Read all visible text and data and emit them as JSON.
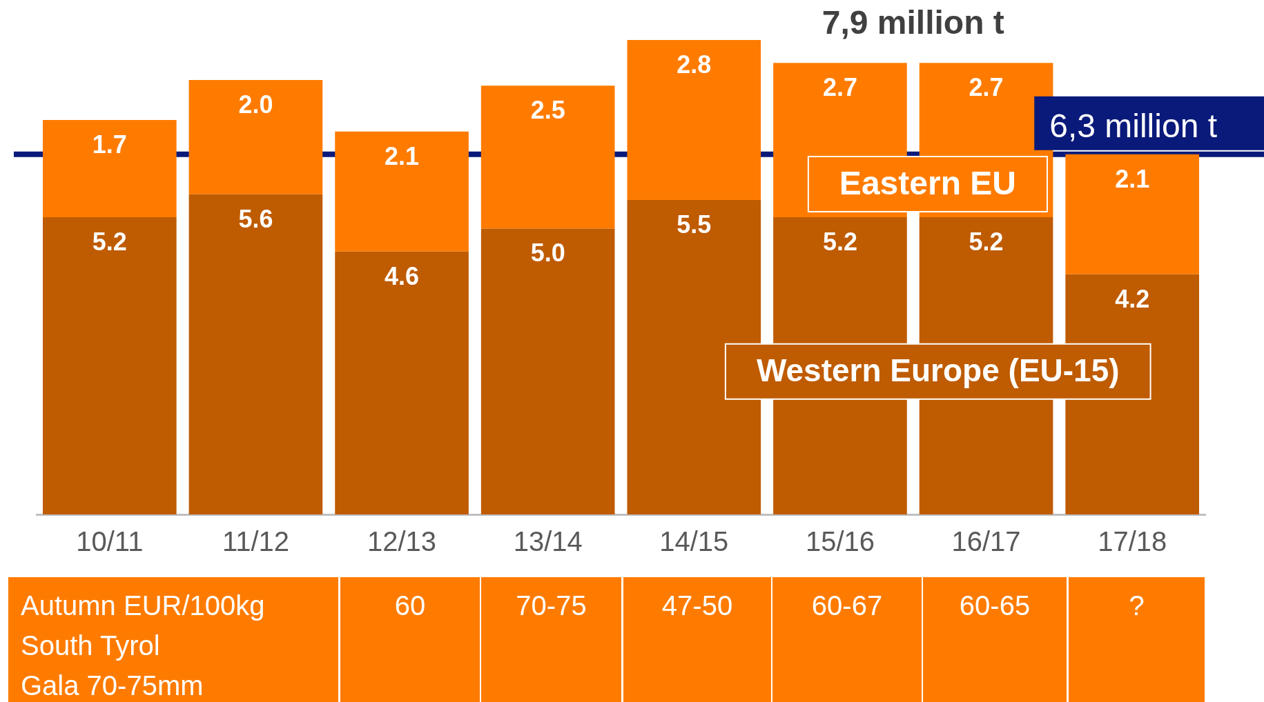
{
  "chart_data": {
    "type": "bar",
    "stacked": true,
    "categories": [
      "10/11",
      "11/12",
      "12/13",
      "13/14",
      "14/15",
      "15/16",
      "16/17",
      "17/18"
    ],
    "series": [
      {
        "name": "Western Europe (EU-15)",
        "color": "#bf5b00",
        "values": [
          5.2,
          5.6,
          4.6,
          5.0,
          5.5,
          5.2,
          5.2,
          4.2
        ],
        "value_labels": [
          "5.2",
          "5.6",
          "4.6",
          "5.0",
          "5.5",
          "5.2",
          "5.2",
          "4.2"
        ]
      },
      {
        "name": "Eastern EU",
        "color": "#ff7b00",
        "values": [
          1.7,
          2.0,
          2.1,
          2.5,
          2.8,
          2.7,
          2.7,
          2.1
        ],
        "value_labels": [
          "1.7",
          "2.0",
          "2.1",
          "2.5",
          "2.8",
          "2.7",
          "2.7",
          "2.1"
        ]
      }
    ],
    "tick_labels": "x",
    "legend": false,
    "grid": false,
    "ref_lines": [
      {
        "axis": "y",
        "value": 6.3,
        "label": "6,3 million t",
        "color": "#0a1a7a"
      }
    ],
    "annotations": [
      "7,9 million t",
      "Autumn EUR/100kg\nSouth Tyrol\nGala 70-75mm",
      "60",
      "70-75",
      "47-50",
      "60-67",
      "60-65",
      "?"
    ]
  }
}
